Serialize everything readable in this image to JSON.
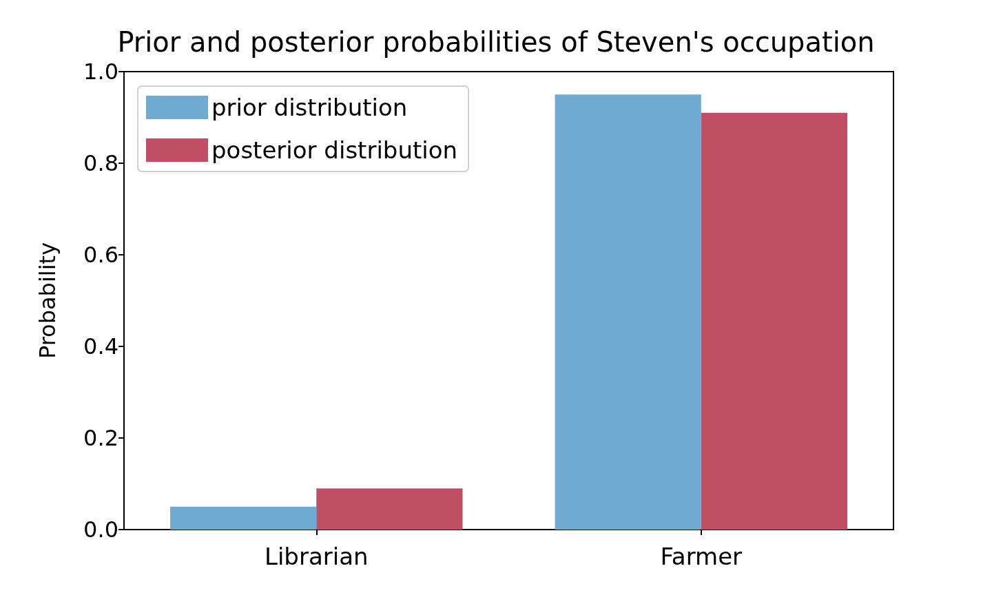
{
  "chart_data": {
    "type": "bar",
    "title": "Prior and posterior probabilities of Steven's occupation",
    "ylabel": "Probability",
    "categories": [
      "Librarian",
      "Farmer"
    ],
    "series": [
      {
        "name": "prior distribution",
        "color": "#6fabd0",
        "values": [
          0.05,
          0.95
        ]
      },
      {
        "name": "posterior distribution",
        "color": "#c04f65",
        "values": [
          0.09,
          0.91
        ]
      }
    ],
    "ylim": [
      0,
      1
    ],
    "yticks": [
      {
        "value": 0,
        "label": "0.0"
      },
      {
        "value": 0.2,
        "label": "0.2"
      },
      {
        "value": 0.4,
        "label": "0.4"
      },
      {
        "value": 0.6,
        "label": "0.6"
      },
      {
        "value": 0.8,
        "label": "0.8"
      },
      {
        "value": 1,
        "label": "1.0"
      }
    ],
    "grid": false,
    "legend": "top left"
  }
}
